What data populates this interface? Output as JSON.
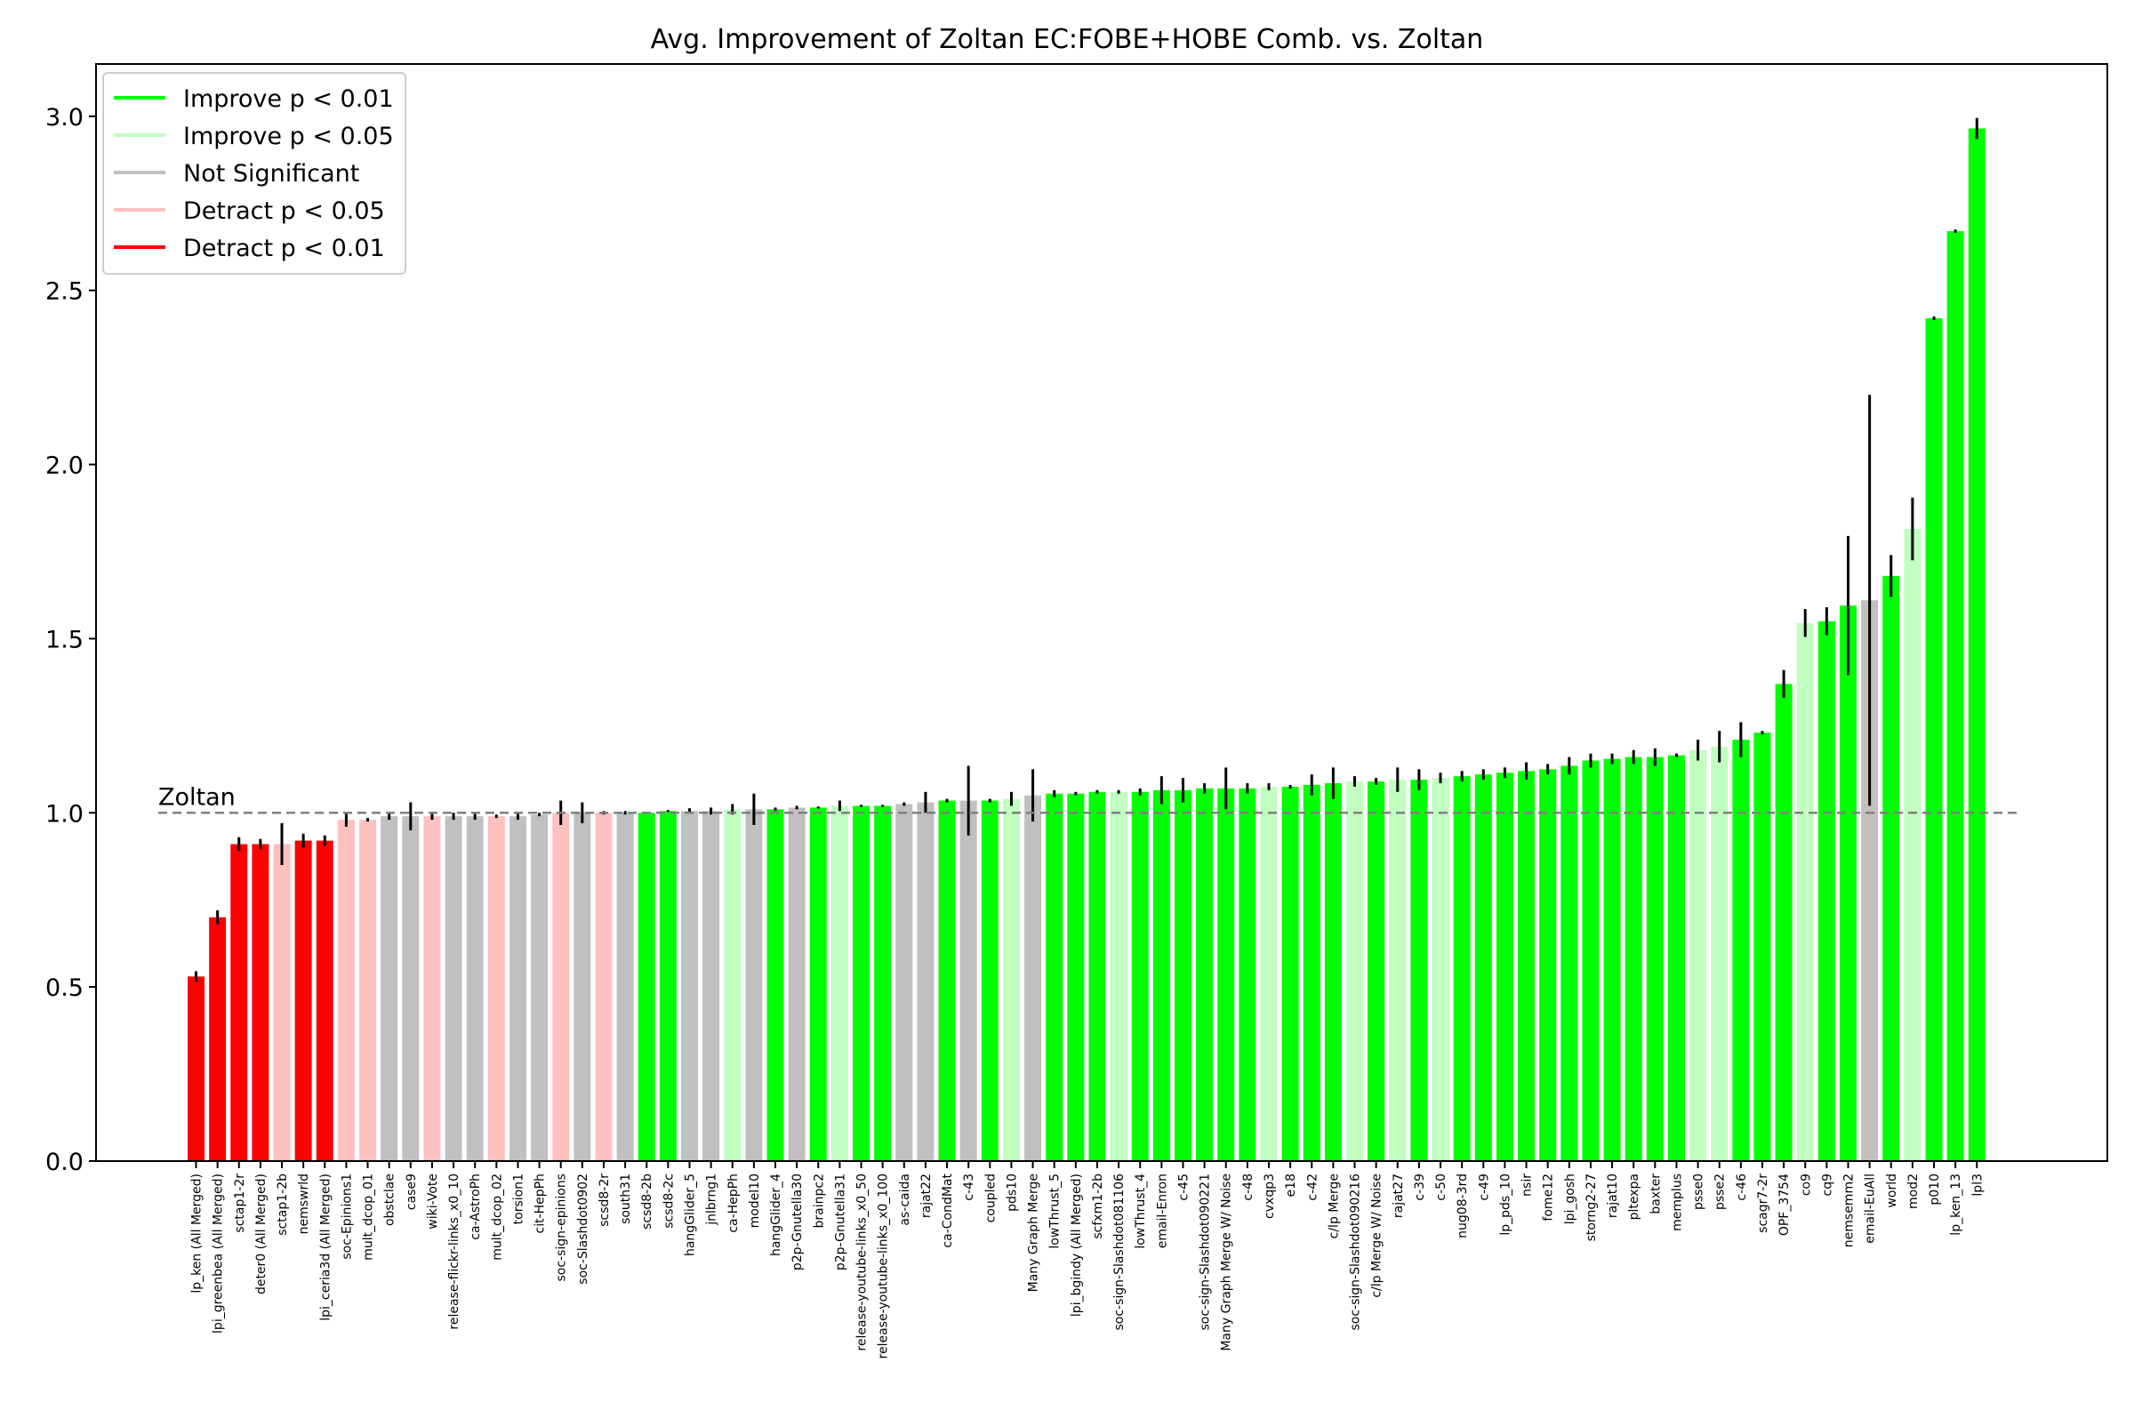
{
  "chart_data": {
    "type": "bar",
    "title": "Avg. Improvement of Zoltan EC:FOBE+HOBE Comb. vs. Zoltan",
    "xlabel": "",
    "ylabel": "",
    "ylim": [
      0.0,
      3.15
    ],
    "yticks": [
      "0.0",
      "0.5",
      "1.0",
      "1.5",
      "2.0",
      "2.5",
      "3.0"
    ],
    "grid": false,
    "legend_position": "top-left",
    "reference_line": {
      "label": "Zoltan",
      "value": 1.0,
      "style": "dashed",
      "color": "#808080"
    },
    "colors": {
      "improve_01": "#00ff00",
      "improve_05": "#c0ffc0",
      "not_significant": "#c0c0c0",
      "detract_05": "#ffc0c0",
      "detract_01": "#ff0000"
    },
    "legend": [
      {
        "label": "Improve p < 0.01",
        "key": "improve_01"
      },
      {
        "label": "Improve p < 0.05",
        "key": "improve_05"
      },
      {
        "label": "Not Significant",
        "key": "not_significant"
      },
      {
        "label": "Detract p < 0.05",
        "key": "detract_05"
      },
      {
        "label": "Detract p < 0.01",
        "key": "detract_01"
      }
    ],
    "bars": [
      {
        "label": "lp_ken (All Merged)",
        "value": 0.53,
        "err": 0.015,
        "sig": "detract_01"
      },
      {
        "label": "lpi_greenbea (All Merged)",
        "value": 0.7,
        "err": 0.02,
        "sig": "detract_01"
      },
      {
        "label": "sctap1-2r",
        "value": 0.91,
        "err": 0.02,
        "sig": "detract_01"
      },
      {
        "label": "deter0 (All Merged)",
        "value": 0.91,
        "err": 0.015,
        "sig": "detract_01"
      },
      {
        "label": "sctap1-2b",
        "value": 0.91,
        "err": 0.06,
        "sig": "detract_05"
      },
      {
        "label": "nemswrld",
        "value": 0.92,
        "err": 0.02,
        "sig": "detract_01"
      },
      {
        "label": "lpi_ceria3d (All Merged)",
        "value": 0.92,
        "err": 0.015,
        "sig": "detract_01"
      },
      {
        "label": "soc-Epinions1",
        "value": 0.98,
        "err": 0.02,
        "sig": "detract_05"
      },
      {
        "label": "mult_dcop_01",
        "value": 0.98,
        "err": 0.005,
        "sig": "detract_05"
      },
      {
        "label": "obstclae",
        "value": 0.99,
        "err": 0.01,
        "sig": "not_significant"
      },
      {
        "label": "case9",
        "value": 0.99,
        "err": 0.04,
        "sig": "not_significant"
      },
      {
        "label": "wiki-Vote",
        "value": 0.99,
        "err": 0.01,
        "sig": "detract_05"
      },
      {
        "label": "release-flickr-links_x0_10",
        "value": 0.99,
        "err": 0.01,
        "sig": "not_significant"
      },
      {
        "label": "ca-AstroPh",
        "value": 0.99,
        "err": 0.01,
        "sig": "not_significant"
      },
      {
        "label": "mult_dcop_02",
        "value": 0.99,
        "err": 0.005,
        "sig": "detract_05"
      },
      {
        "label": "torsion1",
        "value": 0.99,
        "err": 0.01,
        "sig": "not_significant"
      },
      {
        "label": "cit-HepPh",
        "value": 0.995,
        "err": 0.005,
        "sig": "not_significant"
      },
      {
        "label": "soc-sign-epinions",
        "value": 1.0,
        "err": 0.035,
        "sig": "detract_05"
      },
      {
        "label": "soc-Slashdot0902",
        "value": 1.0,
        "err": 0.03,
        "sig": "not_significant"
      },
      {
        "label": "scsd8-2r",
        "value": 1.0,
        "err": 0.005,
        "sig": "detract_05"
      },
      {
        "label": "south31",
        "value": 1.0,
        "err": 0.005,
        "sig": "not_significant"
      },
      {
        "label": "scsd8-2b",
        "value": 1.0,
        "err": 0.003,
        "sig": "improve_01"
      },
      {
        "label": "scsd8-2c",
        "value": 1.005,
        "err": 0.003,
        "sig": "improve_01"
      },
      {
        "label": "hangGlider_5",
        "value": 1.005,
        "err": 0.008,
        "sig": "not_significant"
      },
      {
        "label": "jnlbrng1",
        "value": 1.005,
        "err": 0.01,
        "sig": "not_significant"
      },
      {
        "label": "ca-HepPh",
        "value": 1.01,
        "err": 0.015,
        "sig": "improve_05"
      },
      {
        "label": "model10",
        "value": 1.01,
        "err": 0.045,
        "sig": "not_significant"
      },
      {
        "label": "hangGlider_4",
        "value": 1.01,
        "err": 0.005,
        "sig": "improve_01"
      },
      {
        "label": "p2p-Gnutella30",
        "value": 1.015,
        "err": 0.005,
        "sig": "not_significant"
      },
      {
        "label": "brainpc2",
        "value": 1.015,
        "err": 0.003,
        "sig": "improve_01"
      },
      {
        "label": "p2p-Gnutella31",
        "value": 1.02,
        "err": 0.015,
        "sig": "improve_05"
      },
      {
        "label": "release-youtube-links_x0_50",
        "value": 1.02,
        "err": 0.003,
        "sig": "improve_01"
      },
      {
        "label": "release-youtube-links_x0_100",
        "value": 1.02,
        "err": 0.003,
        "sig": "improve_01"
      },
      {
        "label": "as-caida",
        "value": 1.025,
        "err": 0.005,
        "sig": "not_significant"
      },
      {
        "label": "rajat22",
        "value": 1.03,
        "err": 0.03,
        "sig": "not_significant"
      },
      {
        "label": "ca-CondMat",
        "value": 1.035,
        "err": 0.005,
        "sig": "improve_01"
      },
      {
        "label": "c-43",
        "value": 1.035,
        "err": 0.1,
        "sig": "not_significant"
      },
      {
        "label": "coupled",
        "value": 1.035,
        "err": 0.005,
        "sig": "improve_01"
      },
      {
        "label": "pds10",
        "value": 1.04,
        "err": 0.02,
        "sig": "improve_05"
      },
      {
        "label": "Many Graph Merge",
        "value": 1.05,
        "err": 0.075,
        "sig": "not_significant"
      },
      {
        "label": "lowThrust_5",
        "value": 1.055,
        "err": 0.01,
        "sig": "improve_01"
      },
      {
        "label": "lpi_bgindy (All Merged)",
        "value": 1.055,
        "err": 0.005,
        "sig": "improve_01"
      },
      {
        "label": "scfxm1-2b",
        "value": 1.06,
        "err": 0.005,
        "sig": "improve_01"
      },
      {
        "label": "soc-sign-Slashdot081106",
        "value": 1.06,
        "err": 0.005,
        "sig": "improve_05"
      },
      {
        "label": "lowThrust_4",
        "value": 1.06,
        "err": 0.01,
        "sig": "improve_01"
      },
      {
        "label": "email-Enron",
        "value": 1.065,
        "err": 0.04,
        "sig": "improve_01"
      },
      {
        "label": "c-45",
        "value": 1.065,
        "err": 0.035,
        "sig": "improve_01"
      },
      {
        "label": "soc-sign-Slashdot090221",
        "value": 1.07,
        "err": 0.015,
        "sig": "improve_01"
      },
      {
        "label": "Many Graph Merge W/ Noise",
        "value": 1.07,
        "err": 0.06,
        "sig": "improve_01"
      },
      {
        "label": "c-48",
        "value": 1.07,
        "err": 0.015,
        "sig": "improve_01"
      },
      {
        "label": "cvxqp3",
        "value": 1.075,
        "err": 0.01,
        "sig": "improve_05"
      },
      {
        "label": "e18",
        "value": 1.075,
        "err": 0.005,
        "sig": "improve_01"
      },
      {
        "label": "c-42",
        "value": 1.08,
        "err": 0.03,
        "sig": "improve_01"
      },
      {
        "label": "c/lp Merge",
        "value": 1.085,
        "err": 0.045,
        "sig": "improve_01"
      },
      {
        "label": "soc-sign-Slashdot090216",
        "value": 1.09,
        "err": 0.015,
        "sig": "improve_05"
      },
      {
        "label": "c/lp Merge W/ Noise",
        "value": 1.09,
        "err": 0.01,
        "sig": "improve_01"
      },
      {
        "label": "rajat27",
        "value": 1.095,
        "err": 0.035,
        "sig": "improve_05"
      },
      {
        "label": "c-39",
        "value": 1.095,
        "err": 0.03,
        "sig": "improve_01"
      },
      {
        "label": "c-50",
        "value": 1.1,
        "err": 0.015,
        "sig": "improve_05"
      },
      {
        "label": "nug08-3rd",
        "value": 1.105,
        "err": 0.015,
        "sig": "improve_01"
      },
      {
        "label": "c-49",
        "value": 1.11,
        "err": 0.015,
        "sig": "improve_01"
      },
      {
        "label": "lp_pds_10",
        "value": 1.115,
        "err": 0.015,
        "sig": "improve_01"
      },
      {
        "label": "nsir",
        "value": 1.12,
        "err": 0.025,
        "sig": "improve_01"
      },
      {
        "label": "fome12",
        "value": 1.125,
        "err": 0.015,
        "sig": "improve_01"
      },
      {
        "label": "lpi_gosh",
        "value": 1.135,
        "err": 0.025,
        "sig": "improve_01"
      },
      {
        "label": "storng2-27",
        "value": 1.15,
        "err": 0.02,
        "sig": "improve_01"
      },
      {
        "label": "rajat10",
        "value": 1.155,
        "err": 0.015,
        "sig": "improve_01"
      },
      {
        "label": "pltexpa",
        "value": 1.16,
        "err": 0.02,
        "sig": "improve_01"
      },
      {
        "label": "baxter",
        "value": 1.16,
        "err": 0.025,
        "sig": "improve_01"
      },
      {
        "label": "memplus",
        "value": 1.165,
        "err": 0.005,
        "sig": "improve_01"
      },
      {
        "label": "psse0",
        "value": 1.18,
        "err": 0.03,
        "sig": "improve_05"
      },
      {
        "label": "psse2",
        "value": 1.19,
        "err": 0.045,
        "sig": "improve_05"
      },
      {
        "label": "c-46",
        "value": 1.21,
        "err": 0.05,
        "sig": "improve_01"
      },
      {
        "label": "scagr7-2r",
        "value": 1.23,
        "err": 0.005,
        "sig": "improve_01"
      },
      {
        "label": "OPF_3754",
        "value": 1.37,
        "err": 0.04,
        "sig": "improve_01"
      },
      {
        "label": "co9",
        "value": 1.545,
        "err": 0.04,
        "sig": "improve_05"
      },
      {
        "label": "cq9",
        "value": 1.55,
        "err": 0.04,
        "sig": "improve_01"
      },
      {
        "label": "nemsemm2",
        "value": 1.595,
        "err": 0.2,
        "sig": "improve_01"
      },
      {
        "label": "email-EuAll",
        "value": 1.61,
        "err": 0.59,
        "sig": "not_significant"
      },
      {
        "label": "world",
        "value": 1.68,
        "err": 0.06,
        "sig": "improve_01"
      },
      {
        "label": "mod2",
        "value": 1.815,
        "err": 0.09,
        "sig": "improve_05"
      },
      {
        "label": "p010",
        "value": 2.42,
        "err": 0.005,
        "sig": "improve_01"
      },
      {
        "label": "lp_ken_13",
        "value": 2.67,
        "err": 0.005,
        "sig": "improve_01"
      },
      {
        "label": "lpl3",
        "value": 2.965,
        "err": 0.03,
        "sig": "improve_01"
      }
    ]
  }
}
